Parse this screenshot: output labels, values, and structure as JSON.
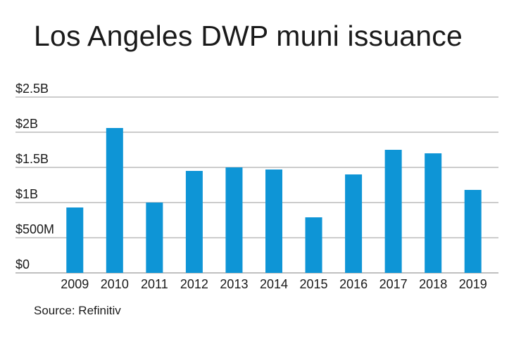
{
  "title": "Los Angeles DWP muni issuance",
  "source": "Source: Refinitiv",
  "chart_data": {
    "type": "bar",
    "title": "Los Angeles DWP muni issuance",
    "xlabel": "",
    "ylabel": "",
    "categories": [
      "2009",
      "2010",
      "2011",
      "2012",
      "2013",
      "2014",
      "2015",
      "2016",
      "2017",
      "2018",
      "2019"
    ],
    "values": [
      0.93,
      2.06,
      1.0,
      1.45,
      1.5,
      1.47,
      0.79,
      1.4,
      1.75,
      1.7,
      1.18
    ],
    "unit": "billion USD",
    "ylim": [
      0,
      2.5
    ],
    "yticks": [
      {
        "value": 0,
        "label": "$0"
      },
      {
        "value": 0.5,
        "label": "$500M"
      },
      {
        "value": 1,
        "label": "$1B"
      },
      {
        "value": 1.5,
        "label": "$1.5B"
      },
      {
        "value": 2,
        "label": "$2B"
      },
      {
        "value": 2.5,
        "label": "$2.5B"
      }
    ],
    "grid": true,
    "bar_color": "#0e95d6",
    "grid_color": "#999999"
  }
}
